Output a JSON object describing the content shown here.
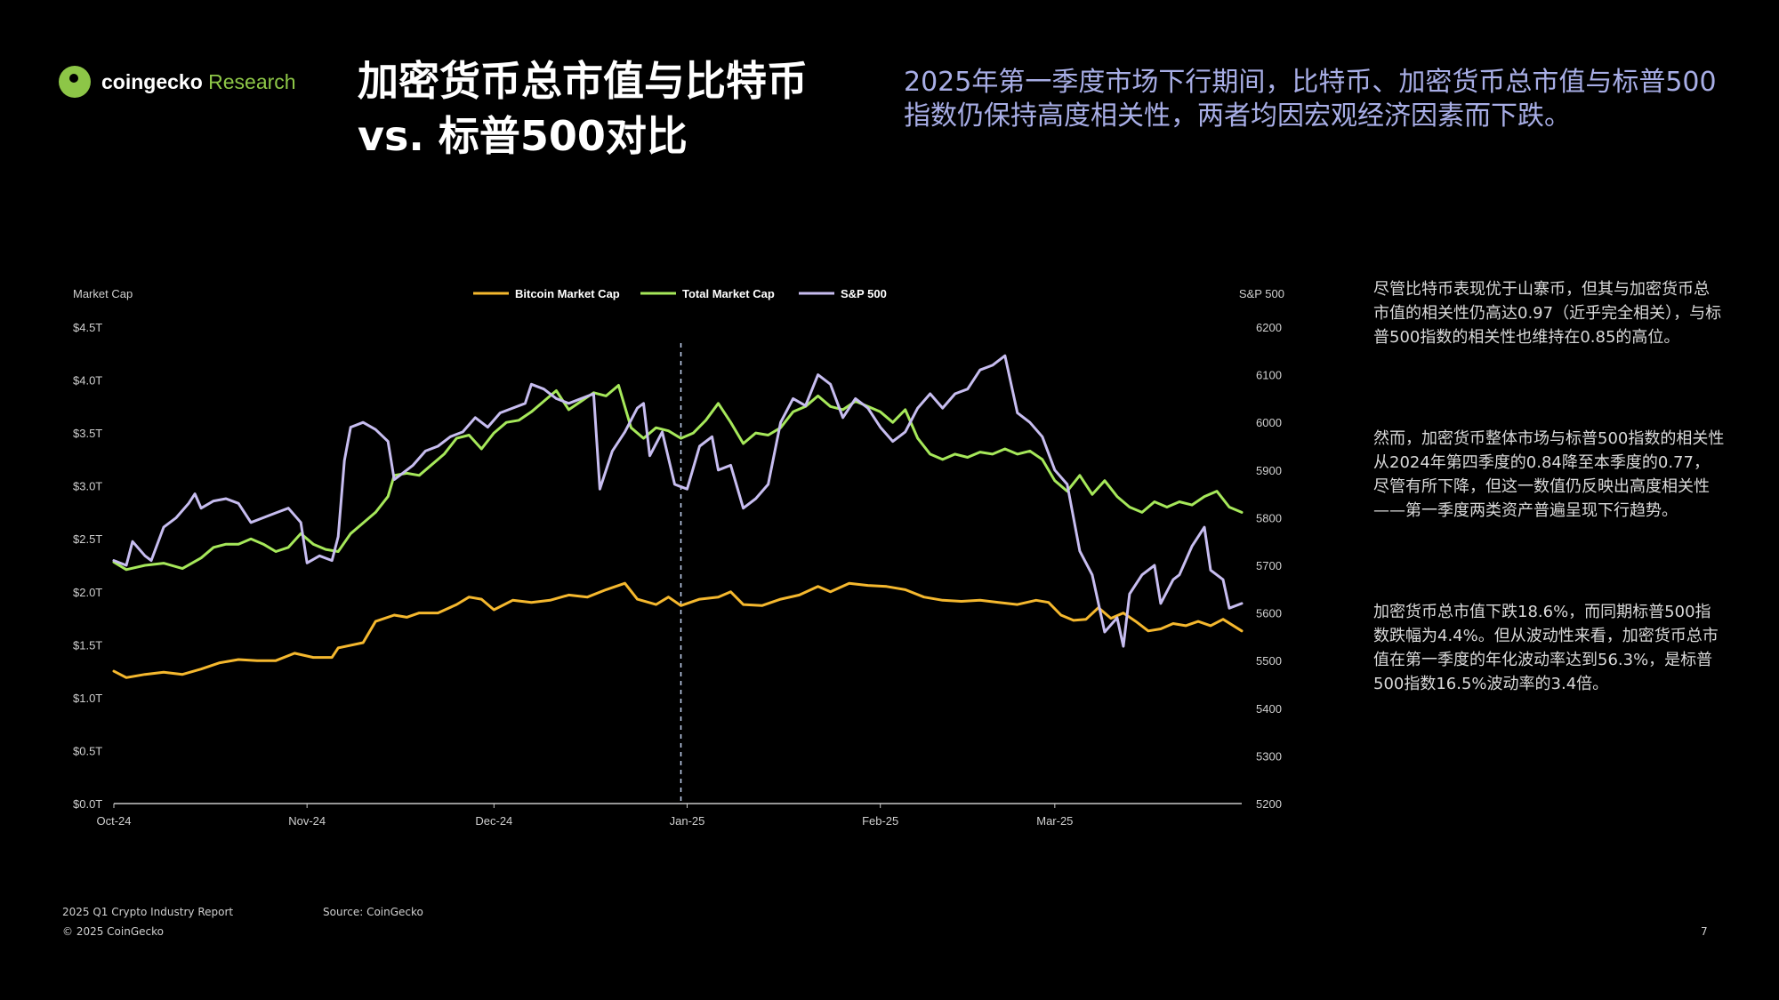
{
  "brand": {
    "name_part1": "coingecko",
    "name_part2": " Research"
  },
  "header": {
    "title_line1": "加密货币总市值与比特币",
    "title_line2": "vs. 标普500对比",
    "subtitle": "2025年第一季度市场下行期间，比特币、加密货币总市值与标普500指数仍保持高度相关性，两者均因宏观经济因素而下跌。"
  },
  "side_notes": {
    "p1": "尽管比特币表现优于山寨币，但其与加密货币总市值的相关性仍高达0.97（近乎完全相关），与标普500指数的相关性也维持在0.85的高位。",
    "p2": "然而，加密货币整体市场与标普500指数的相关性从2024年第四季度的0.84降至本季度的0.77，尽管有所下降，但这一数值仍反映出高度相关性——第一季度两类资产普遍呈现下行趋势。",
    "p3": "加密货币总市值下跌18.6%，而同期标普500指数跌幅为4.4%。但从波动性来看，加密货币总市值在第一季度的年化波动率达到56.3%，是标普500指数16.5%波动率的3.4倍。"
  },
  "footer": {
    "report": "2025 Q1 Crypto Industry Report",
    "source": "Source: CoinGecko",
    "copyright": "© 2025 CoinGecko",
    "page": "7"
  },
  "colors": {
    "bitcoin": "#f5b82e",
    "total": "#a6e85a",
    "sp500": "#c7bdf0",
    "subtitle": "#a8aee6",
    "brand": "#8dc647"
  },
  "chart_data": {
    "type": "line",
    "left_axis_label": "Market Cap",
    "right_axis_label": "S&P 500",
    "x_ticks": [
      "Oct-24",
      "Nov-24",
      "Dec-24",
      "Jan-25",
      "Feb-25",
      "Mar-25"
    ],
    "x_range_days": [
      0,
      181
    ],
    "x_tick_days": [
      0,
      31,
      61,
      92,
      123,
      151
    ],
    "left_ylim": [
      0,
      4.5
    ],
    "left_ticks": [
      "$0.0T",
      "$0.5T",
      "$1.0T",
      "$1.5T",
      "$2.0T",
      "$2.5T",
      "$3.0T",
      "$3.5T",
      "$4.0T",
      "$4.5T"
    ],
    "right_ylim": [
      5200,
      6200
    ],
    "right_ticks": [
      "5200",
      "5300",
      "5400",
      "5500",
      "5600",
      "5700",
      "5800",
      "5900",
      "6000",
      "6100",
      "6200"
    ],
    "marker_day": 91,
    "legend_position": "top-center",
    "series": [
      {
        "name": "Bitcoin Market Cap",
        "axis": "left",
        "color": "#f5b82e",
        "points": [
          [
            0,
            1.25
          ],
          [
            2,
            1.19
          ],
          [
            5,
            1.22
          ],
          [
            8,
            1.24
          ],
          [
            11,
            1.22
          ],
          [
            14,
            1.27
          ],
          [
            17,
            1.33
          ],
          [
            20,
            1.36
          ],
          [
            23,
            1.35
          ],
          [
            26,
            1.35
          ],
          [
            29,
            1.42
          ],
          [
            32,
            1.38
          ],
          [
            35,
            1.38
          ],
          [
            36,
            1.47
          ],
          [
            40,
            1.52
          ],
          [
            42,
            1.72
          ],
          [
            45,
            1.78
          ],
          [
            47,
            1.76
          ],
          [
            49,
            1.8
          ],
          [
            52,
            1.8
          ],
          [
            55,
            1.88
          ],
          [
            57,
            1.95
          ],
          [
            59,
            1.93
          ],
          [
            61,
            1.83
          ],
          [
            64,
            1.92
          ],
          [
            67,
            1.9
          ],
          [
            70,
            1.92
          ],
          [
            73,
            1.97
          ],
          [
            76,
            1.95
          ],
          [
            79,
            2.02
          ],
          [
            82,
            2.08
          ],
          [
            84,
            1.93
          ],
          [
            87,
            1.88
          ],
          [
            89,
            1.95
          ],
          [
            91,
            1.87
          ],
          [
            94,
            1.93
          ],
          [
            97,
            1.95
          ],
          [
            99,
            2.0
          ],
          [
            101,
            1.88
          ],
          [
            104,
            1.87
          ],
          [
            107,
            1.93
          ],
          [
            110,
            1.97
          ],
          [
            113,
            2.05
          ],
          [
            115,
            2.0
          ],
          [
            118,
            2.08
          ],
          [
            121,
            2.06
          ],
          [
            124,
            2.05
          ],
          [
            127,
            2.02
          ],
          [
            130,
            1.95
          ],
          [
            133,
            1.92
          ],
          [
            136,
            1.91
          ],
          [
            139,
            1.92
          ],
          [
            142,
            1.9
          ],
          [
            145,
            1.88
          ],
          [
            148,
            1.92
          ],
          [
            150,
            1.9
          ],
          [
            152,
            1.78
          ],
          [
            154,
            1.73
          ],
          [
            156,
            1.74
          ],
          [
            158,
            1.85
          ],
          [
            160,
            1.75
          ],
          [
            162,
            1.8
          ],
          [
            164,
            1.72
          ],
          [
            166,
            1.63
          ],
          [
            168,
            1.65
          ],
          [
            170,
            1.7
          ],
          [
            172,
            1.68
          ],
          [
            174,
            1.72
          ],
          [
            176,
            1.68
          ],
          [
            178,
            1.74
          ],
          [
            181,
            1.63
          ]
        ]
      },
      {
        "name": "Total Market Cap",
        "axis": "left",
        "color": "#a6e85a",
        "points": [
          [
            0,
            2.28
          ],
          [
            2,
            2.21
          ],
          [
            5,
            2.25
          ],
          [
            8,
            2.27
          ],
          [
            11,
            2.22
          ],
          [
            14,
            2.32
          ],
          [
            16,
            2.42
          ],
          [
            18,
            2.45
          ],
          [
            20,
            2.45
          ],
          [
            22,
            2.5
          ],
          [
            24,
            2.45
          ],
          [
            26,
            2.38
          ],
          [
            28,
            2.42
          ],
          [
            30,
            2.55
          ],
          [
            32,
            2.45
          ],
          [
            34,
            2.4
          ],
          [
            36,
            2.38
          ],
          [
            38,
            2.55
          ],
          [
            40,
            2.65
          ],
          [
            42,
            2.75
          ],
          [
            44,
            2.9
          ],
          [
            45,
            3.1
          ],
          [
            47,
            3.12
          ],
          [
            49,
            3.1
          ],
          [
            51,
            3.2
          ],
          [
            53,
            3.3
          ],
          [
            55,
            3.45
          ],
          [
            57,
            3.48
          ],
          [
            59,
            3.35
          ],
          [
            61,
            3.5
          ],
          [
            63,
            3.6
          ],
          [
            65,
            3.62
          ],
          [
            67,
            3.7
          ],
          [
            69,
            3.8
          ],
          [
            71,
            3.9
          ],
          [
            73,
            3.72
          ],
          [
            75,
            3.8
          ],
          [
            77,
            3.88
          ],
          [
            79,
            3.85
          ],
          [
            81,
            3.95
          ],
          [
            83,
            3.55
          ],
          [
            85,
            3.45
          ],
          [
            87,
            3.55
          ],
          [
            89,
            3.52
          ],
          [
            91,
            3.45
          ],
          [
            93,
            3.5
          ],
          [
            95,
            3.62
          ],
          [
            97,
            3.78
          ],
          [
            99,
            3.6
          ],
          [
            101,
            3.4
          ],
          [
            103,
            3.5
          ],
          [
            105,
            3.48
          ],
          [
            107,
            3.55
          ],
          [
            109,
            3.7
          ],
          [
            111,
            3.75
          ],
          [
            113,
            3.85
          ],
          [
            115,
            3.75
          ],
          [
            117,
            3.72
          ],
          [
            119,
            3.8
          ],
          [
            121,
            3.75
          ],
          [
            123,
            3.7
          ],
          [
            125,
            3.6
          ],
          [
            127,
            3.72
          ],
          [
            129,
            3.45
          ],
          [
            131,
            3.3
          ],
          [
            133,
            3.25
          ],
          [
            135,
            3.3
          ],
          [
            137,
            3.27
          ],
          [
            139,
            3.32
          ],
          [
            141,
            3.3
          ],
          [
            143,
            3.35
          ],
          [
            145,
            3.3
          ],
          [
            147,
            3.33
          ],
          [
            149,
            3.25
          ],
          [
            151,
            3.05
          ],
          [
            153,
            2.95
          ],
          [
            155,
            3.1
          ],
          [
            157,
            2.92
          ],
          [
            159,
            3.05
          ],
          [
            161,
            2.9
          ],
          [
            163,
            2.8
          ],
          [
            165,
            2.75
          ],
          [
            167,
            2.85
          ],
          [
            169,
            2.8
          ],
          [
            171,
            2.85
          ],
          [
            173,
            2.82
          ],
          [
            175,
            2.9
          ],
          [
            177,
            2.95
          ],
          [
            179,
            2.8
          ],
          [
            181,
            2.75
          ]
        ]
      },
      {
        "name": "S&P 500",
        "axis": "right",
        "color": "#c7bdf0",
        "points": [
          [
            0,
            5710
          ],
          [
            2,
            5700
          ],
          [
            3,
            5750
          ],
          [
            5,
            5720
          ],
          [
            6,
            5710
          ],
          [
            8,
            5780
          ],
          [
            10,
            5800
          ],
          [
            12,
            5830
          ],
          [
            13,
            5850
          ],
          [
            14,
            5820
          ],
          [
            16,
            5835
          ],
          [
            18,
            5840
          ],
          [
            20,
            5830
          ],
          [
            22,
            5790
          ],
          [
            24,
            5800
          ],
          [
            26,
            5810
          ],
          [
            28,
            5820
          ],
          [
            30,
            5790
          ],
          [
            31,
            5705
          ],
          [
            33,
            5720
          ],
          [
            35,
            5710
          ],
          [
            36,
            5760
          ],
          [
            37,
            5920
          ],
          [
            38,
            5990
          ],
          [
            40,
            6000
          ],
          [
            42,
            5985
          ],
          [
            44,
            5960
          ],
          [
            45,
            5880
          ],
          [
            46,
            5890
          ],
          [
            48,
            5910
          ],
          [
            50,
            5940
          ],
          [
            52,
            5950
          ],
          [
            54,
            5970
          ],
          [
            56,
            5980
          ],
          [
            58,
            6010
          ],
          [
            60,
            5990
          ],
          [
            62,
            6020
          ],
          [
            64,
            6030
          ],
          [
            66,
            6040
          ],
          [
            67,
            6080
          ],
          [
            69,
            6070
          ],
          [
            71,
            6050
          ],
          [
            73,
            6040
          ],
          [
            75,
            6050
          ],
          [
            77,
            6060
          ],
          [
            78,
            5860
          ],
          [
            80,
            5940
          ],
          [
            82,
            5980
          ],
          [
            84,
            6030
          ],
          [
            85,
            6040
          ],
          [
            86,
            5930
          ],
          [
            88,
            5980
          ],
          [
            90,
            5870
          ],
          [
            92,
            5860
          ],
          [
            94,
            5950
          ],
          [
            96,
            5970
          ],
          [
            97,
            5900
          ],
          [
            99,
            5910
          ],
          [
            101,
            5820
          ],
          [
            103,
            5840
          ],
          [
            105,
            5870
          ],
          [
            107,
            6000
          ],
          [
            109,
            6050
          ],
          [
            111,
            6035
          ],
          [
            113,
            6100
          ],
          [
            115,
            6080
          ],
          [
            117,
            6010
          ],
          [
            119,
            6050
          ],
          [
            121,
            6030
          ],
          [
            123,
            5990
          ],
          [
            125,
            5960
          ],
          [
            127,
            5980
          ],
          [
            129,
            6030
          ],
          [
            131,
            6060
          ],
          [
            133,
            6030
          ],
          [
            135,
            6060
          ],
          [
            137,
            6070
          ],
          [
            139,
            6110
          ],
          [
            141,
            6120
          ],
          [
            143,
            6140
          ],
          [
            145,
            6020
          ],
          [
            147,
            6000
          ],
          [
            149,
            5970
          ],
          [
            151,
            5900
          ],
          [
            153,
            5870
          ],
          [
            155,
            5730
          ],
          [
            157,
            5680
          ],
          [
            159,
            5560
          ],
          [
            161,
            5590
          ],
          [
            162,
            5530
          ],
          [
            163,
            5640
          ],
          [
            165,
            5680
          ],
          [
            167,
            5700
          ],
          [
            168,
            5620
          ],
          [
            170,
            5670
          ],
          [
            171,
            5680
          ],
          [
            173,
            5740
          ],
          [
            175,
            5780
          ],
          [
            176,
            5690
          ],
          [
            178,
            5670
          ],
          [
            179,
            5610
          ],
          [
            181,
            5620
          ]
        ]
      }
    ]
  }
}
